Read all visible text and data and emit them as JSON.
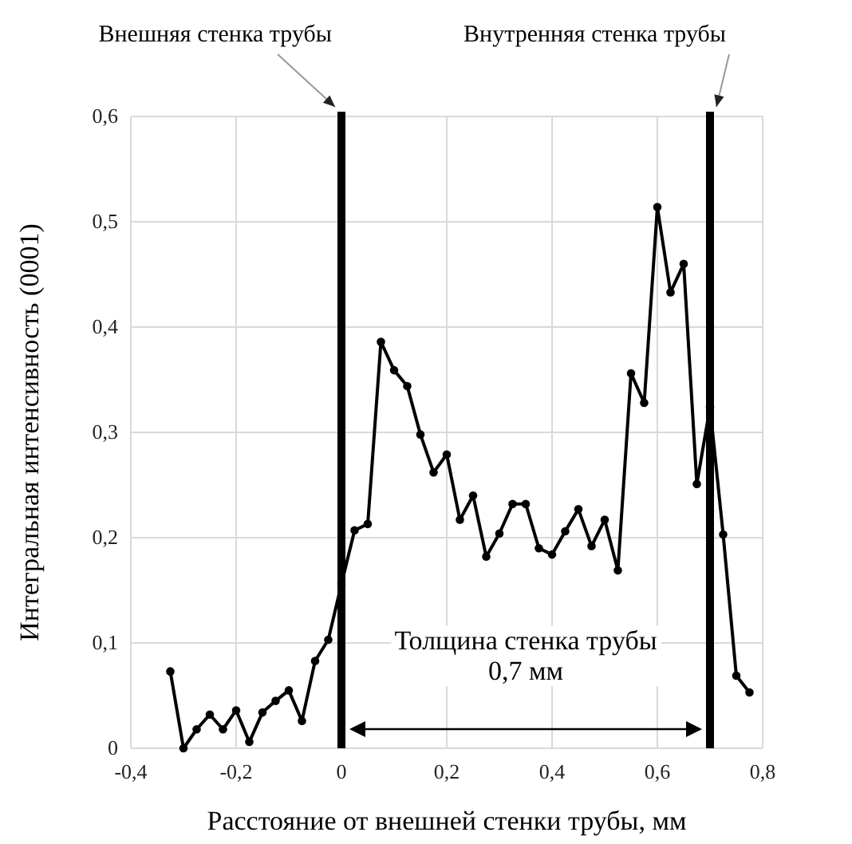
{
  "chart_data": {
    "type": "line",
    "xlabel": "Расстояние от внешней стенки трубы, мм",
    "ylabel": "Интегральная интенсивность (0001)",
    "x": [
      -0.325,
      -0.3,
      -0.275,
      -0.25,
      -0.225,
      -0.2,
      -0.175,
      -0.15,
      -0.125,
      -0.1,
      -0.075,
      -0.05,
      -0.025,
      0,
      0.025,
      0.05,
      0.075,
      0.1,
      0.125,
      0.15,
      0.175,
      0.2,
      0.225,
      0.25,
      0.275,
      0.3,
      0.325,
      0.35,
      0.375,
      0.4,
      0.425,
      0.45,
      0.475,
      0.5,
      0.525,
      0.55,
      0.575,
      0.6,
      0.625,
      0.65,
      0.675,
      0.7,
      0.725,
      0.75,
      0.775
    ],
    "series": [
      {
        "color": "#000000",
        "values": [
          0.073,
          0,
          0.018,
          0.032,
          0.018,
          0.036,
          0.006,
          0.034,
          0.045,
          0.055,
          0.026,
          0.083,
          0.103,
          0.156,
          0.207,
          0.213,
          0.386,
          0.359,
          0.344,
          0.298,
          0.262,
          0.279,
          0.217,
          0.24,
          0.182,
          0.204,
          0.232,
          0.232,
          0.19,
          0.184,
          0.206,
          0.227,
          0.192,
          0.217,
          0.169,
          0.356,
          0.328,
          0.514,
          0.433,
          0.46,
          0.251,
          0.324,
          0.203,
          0.069,
          0.053
        ]
      }
    ],
    "xlim": [
      -0.4,
      0.8
    ],
    "xticks": [
      {
        "value": -0.4,
        "label": "-0,4"
      },
      {
        "value": -0.2,
        "label": "-0,2"
      },
      0,
      {
        "value": 0.2,
        "label": "0,2"
      },
      {
        "value": 0.4,
        "label": "0,4"
      },
      {
        "value": 0.6,
        "label": "0,6"
      },
      {
        "value": 0.8,
        "label": "0,8"
      }
    ],
    "ylim": [
      0,
      0.6
    ],
    "yticks": [
      0,
      {
        "value": 0.1,
        "label": "0,1"
      },
      {
        "value": 0.2,
        "label": "0,2"
      },
      {
        "value": 0.3,
        "label": "0,3"
      },
      {
        "value": 0.4,
        "label": "0,4"
      },
      {
        "value": 0.5,
        "label": "0,5"
      },
      {
        "value": 0.6,
        "label": "0,6"
      }
    ],
    "grid": true,
    "marker": "circle",
    "line_style": "solid",
    "ref_lines": [
      {
        "axis": "x",
        "value": 0,
        "label": "Внешняя стенка трубы",
        "color": "#000000"
      },
      {
        "axis": "x",
        "value": 0.7,
        "label": "Внутренняя стенка трубы",
        "color": "#000000"
      }
    ],
    "annotations": [
      "Толщина стенка трубы\n0,7 мм"
    ]
  }
}
